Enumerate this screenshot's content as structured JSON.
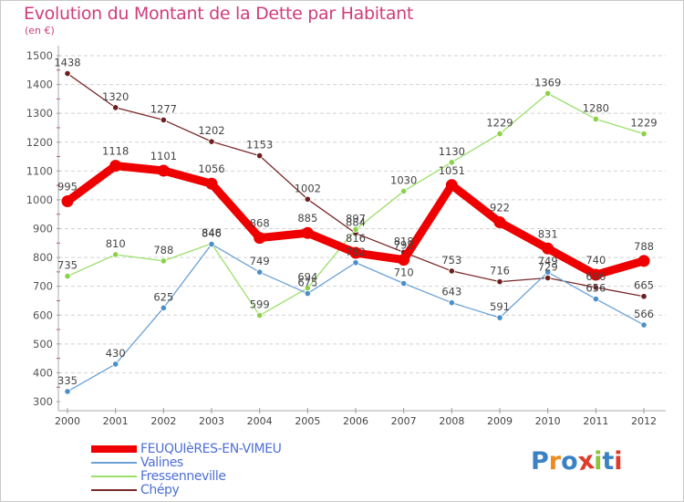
{
  "title": "Evolution du Montant de la Dette par Habitant",
  "unit": "(en €)",
  "logo": {
    "text": "Proxiti",
    "letters": [
      "P",
      "r",
      "o",
      "x",
      "i",
      "t",
      "i"
    ],
    "colors": [
      "#3b82c4",
      "#f08a1c",
      "#3b82c4",
      "#e03a2c",
      "#8cc43c",
      "#3b82c4",
      "#e03a2c"
    ]
  },
  "chart_data": {
    "type": "line",
    "title": "Evolution du Montant de la Dette par Habitant",
    "ylabel": "(en €)",
    "xlabel": "",
    "categories": [
      "2000",
      "2001",
      "2002",
      "2003",
      "2004",
      "2005",
      "2006",
      "2007",
      "2008",
      "2009",
      "2010",
      "2011",
      "2012"
    ],
    "ylim": [
      300,
      1500
    ],
    "yticks": [
      "300",
      "400",
      "500",
      "600",
      "700",
      "800",
      "900",
      "1000",
      "1100",
      "1200",
      "1300",
      "1400",
      "1500"
    ],
    "series": [
      {
        "name": "Chépy",
        "color": "#6b1f1f",
        "line_color": "#7a2a2a",
        "values": [
          1438,
          1320,
          1277,
          1202,
          1153,
          1002,
          884,
          818,
          753,
          716,
          729,
          696,
          665
        ]
      },
      {
        "name": "Fressenneville",
        "color": "#8cd14a",
        "line_color": "#9be06a",
        "values": [
          735,
          810,
          788,
          848,
          599,
          694,
          897,
          1030,
          1130,
          1229,
          1369,
          1280,
          1229
        ]
      },
      {
        "name": "Valines",
        "color": "#4b8ec8",
        "line_color": "#6aa2d6",
        "values": [
          335,
          430,
          625,
          846,
          749,
          675,
          782,
          710,
          643,
          591,
          749,
          656,
          566
        ]
      },
      {
        "name": "FEUQUIèRES-EN-VIMEU",
        "color": "#ee0000",
        "line_color": "#ee0000",
        "values": [
          995,
          1118,
          1101,
          1056,
          868,
          885,
          816,
          792,
          1051,
          922,
          831,
          740,
          788
        ],
        "highlight": true
      }
    ],
    "legend": [
      "FEUQUIèRES-EN-VIMEU",
      "Valines",
      "Fressenneville",
      "Chépy"
    ],
    "legend_position": "bottom-left",
    "grid": "horizontal dashed"
  }
}
